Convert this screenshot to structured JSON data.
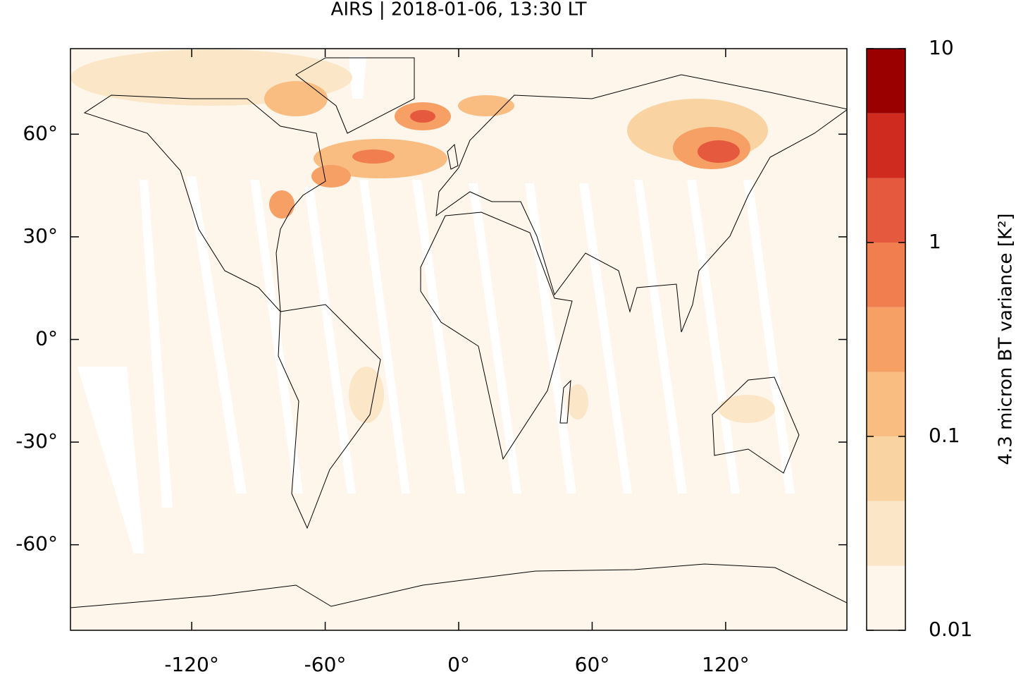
{
  "chart_data": {
    "type": "map",
    "title": "AIRS | 2018-01-06, 13:30 LT",
    "xlim": [
      -174.5,
      174.5
    ],
    "ylim": [
      -85,
      85
    ],
    "xticks": [
      {
        "value": -120,
        "label": "-120°"
      },
      {
        "value": -60,
        "label": "-60°"
      },
      {
        "value": 0,
        "label": "0°"
      },
      {
        "value": 60,
        "label": "60°"
      },
      {
        "value": 120,
        "label": "120°"
      }
    ],
    "yticks": [
      {
        "value": 60,
        "label": "60°"
      },
      {
        "value": 30,
        "label": "30°"
      },
      {
        "value": 0,
        "label": "0°"
      },
      {
        "value": -30,
        "label": "-30°"
      },
      {
        "value": -60,
        "label": "-60°"
      }
    ],
    "colorbar": {
      "label": "4.3 micron BT variance [K²]",
      "log_scale": true,
      "lim": [
        0.01,
        10
      ],
      "ticks": [
        0.01,
        0.1,
        1,
        10
      ],
      "levels": [
        0.01,
        0.0215,
        0.0464,
        0.1,
        0.215,
        0.464,
        1,
        2.15,
        4.64,
        10
      ],
      "colors": [
        "#fef6ea",
        "#fbe6c7",
        "#fad3a2",
        "#f9bd82",
        "#f6a066",
        "#f07e4f",
        "#e55a3e",
        "#cf2b1f",
        "#9b0000"
      ]
    }
  }
}
